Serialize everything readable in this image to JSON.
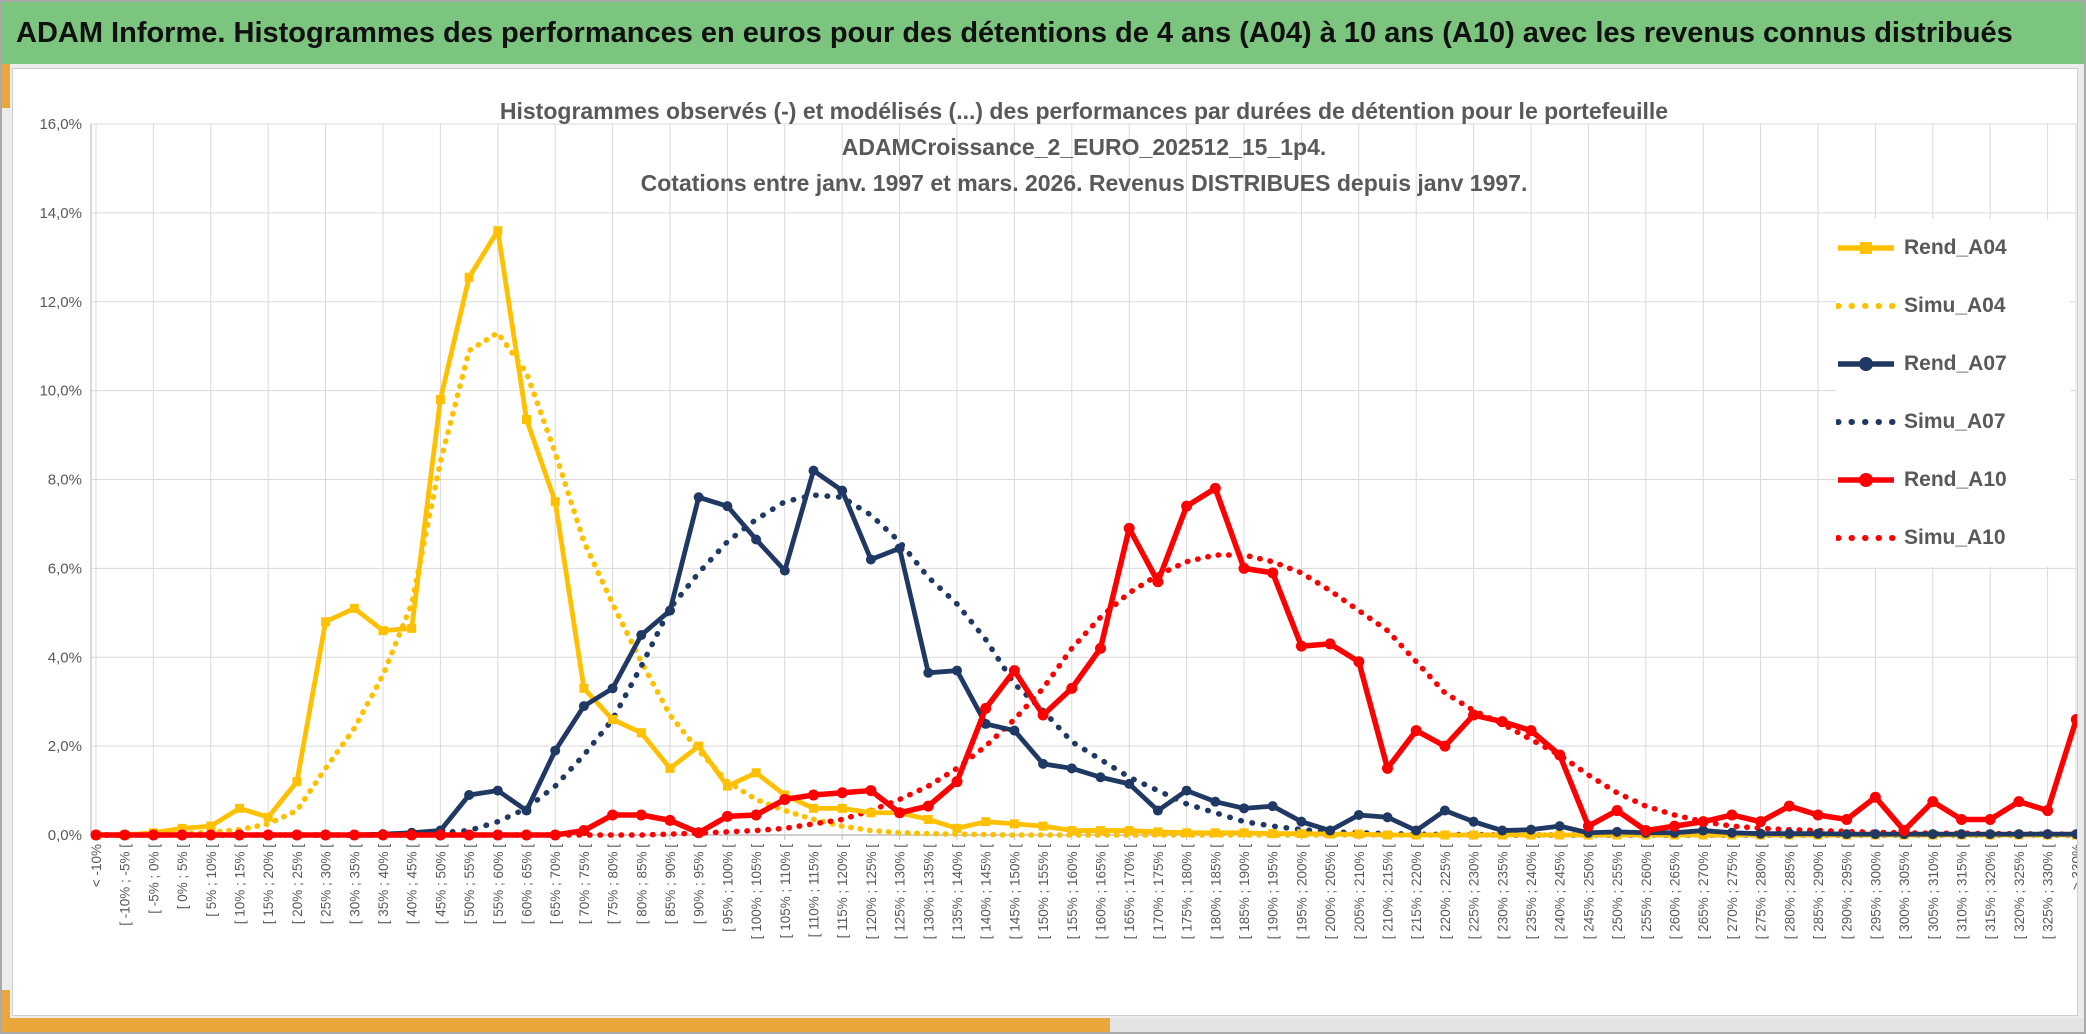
{
  "window": {
    "title": "ADAM Informe. Histogrammes des performances en euros pour des détentions de 4 ans (A04) à 10 ans (A10) avec les revenus connus distribués"
  },
  "colors": {
    "banner_green": "#7cc57e",
    "accent_gold_bar": "#e9a73b",
    "series_gold": "#FFC000",
    "series_navy": "#1F3864",
    "series_red": "#FF0000",
    "grid": "#D9D9D9",
    "axis": "#BFBFBF",
    "text_grey": "#595959"
  },
  "chart": {
    "title_lines": [
      "Histogrammes observés (-) et modélisés (...) des performances par durées de détention pour le portefeuille",
      "ADAMCroissance_2_EURO_202512_15_1p4.",
      "Cotations entre janv. 1997 et mars. 2026. Revenus DISTRIBUES depuis janv 1997."
    ],
    "y_tick_labels": [
      "16,0%",
      "14,0%",
      "12,0%",
      "10,0%",
      "8,0%",
      "6,0%",
      "4,0%",
      "2,0%",
      "0,0%"
    ]
  },
  "chart_data": {
    "type": "line",
    "title": "Histogrammes observés (-) et modélisés (...) des performances par durées de détention pour le portefeuille ADAMCroissance_2_EURO_202512_15_1p4. Cotations entre janv. 1997 et mars. 2026. Revenus DISTRIBUES depuis janv 1997.",
    "xlabel": "",
    "ylabel": "",
    "ylim": [
      0,
      16
    ],
    "y_step": 2,
    "y_tick_format": "percent-comma",
    "grid": true,
    "legend_position": "right-inside",
    "categories": [
      "< -10%",
      "[ -10% ; -5% [",
      "[ -5% ; 0% [",
      "[ 0% ; 5% [",
      "[ 5% ; 10% [",
      "[ 10% ; 15% [",
      "[ 15% ; 20% [",
      "[ 20% ; 25% [",
      "[ 25% ; 30% [",
      "[ 30% ; 35% [",
      "[ 35% ; 40% [",
      "[ 40% ; 45% [",
      "[ 45% ; 50% [",
      "[ 50% ; 55% [",
      "[ 55% ; 60% [",
      "[ 60% ; 65% [",
      "[ 65% ; 70% [",
      "[ 70% ; 75% [",
      "[ 75% ; 80% [",
      "[ 80% ; 85% [",
      "[ 85% ; 90% [",
      "[ 90% ; 95% [",
      "[ 95% ; 100% [",
      "[ 100% ; 105% [",
      "[ 105% ; 110% [",
      "[ 110% ; 115% [",
      "[ 115% ; 120% [",
      "[ 120% ; 125% [",
      "[ 125% ; 130% [",
      "[ 130% ; 135% [",
      "[ 135% ; 140% [",
      "[ 140% ; 145% [",
      "[ 145% ; 150% [",
      "[ 150% ; 155% [",
      "[ 155% ; 160% [",
      "[ 160% ; 165% [",
      "[ 165% ; 170% [",
      "[ 170% ; 175% [",
      "[ 175% ; 180% [",
      "[ 180% ; 185% [",
      "[ 185% ; 190% [",
      "[ 190% ; 195% [",
      "[ 195% ; 200% [",
      "[ 200% ; 205% [",
      "[ 205% ; 210% [",
      "[ 210% ; 215% [",
      "[ 215% ; 220% [",
      "[ 220% ; 225% [",
      "[ 225% ; 230% [",
      "[ 230% ; 235% [",
      "[ 235% ; 240% [",
      "[ 240% ; 245% [",
      "[ 245% ; 250% [",
      "[ 250% ; 255% [",
      "[ 255% ; 260% [",
      "[ 260% ; 265% [",
      "[ 265% ; 270% [",
      "[ 270% ; 275% [",
      "[ 275% ; 280% [",
      "[ 280% ; 285% [",
      "[ 285% ; 290% [",
      "[ 290% ; 295% [",
      "[ 295% ; 300% [",
      "[ 300% ; 305% [",
      "[ 305% ; 310% [",
      "[ 310% ; 315% [",
      "[ 315% ; 320% [",
      "[ 320% ; 325% [",
      "[ 325% ; 330% [",
      "> 330%"
    ],
    "series": [
      {
        "name": "Rend_A04",
        "color": "#FFC000",
        "style": "solid",
        "marker": "square",
        "values": [
          0,
          0,
          0.05,
          0.15,
          0.2,
          0.6,
          0.4,
          1.2,
          4.8,
          5.1,
          4.6,
          4.65,
          9.8,
          12.55,
          13.6,
          9.35,
          7.5,
          3.3,
          2.6,
          2.3,
          1.5,
          2.0,
          1.1,
          1.4,
          0.9,
          0.6,
          0.6,
          0.5,
          0.5,
          0.35,
          0.15,
          0.3,
          0.25,
          0.2,
          0.1,
          0.1,
          0.1,
          0.07,
          0.05,
          0.05,
          0.05,
          0.03,
          0.03,
          0.02,
          0.02,
          0,
          0,
          0,
          0,
          0,
          0,
          0,
          0,
          0,
          0,
          0,
          0,
          0,
          0,
          0,
          0,
          0,
          0,
          0,
          0,
          0,
          0,
          0,
          0,
          0
        ]
      },
      {
        "name": "Simu_A04",
        "color": "#FFC000",
        "style": "dotted",
        "marker": "none",
        "values": [
          0,
          0,
          0.01,
          0.03,
          0.06,
          0.12,
          0.25,
          0.55,
          1.5,
          2.4,
          3.6,
          5.2,
          8.4,
          10.9,
          11.3,
          10.4,
          8.6,
          6.6,
          5.2,
          3.9,
          2.7,
          1.9,
          1.2,
          0.8,
          0.55,
          0.35,
          0.2,
          0.1,
          0.05,
          0.03,
          0.02,
          0.01,
          0,
          0,
          0,
          0,
          0,
          0,
          0,
          0,
          0,
          0,
          0,
          0,
          0,
          0,
          0,
          0,
          0,
          0,
          0,
          0,
          0,
          0,
          0,
          0,
          0,
          0,
          0,
          0,
          0,
          0,
          0,
          0,
          0,
          0,
          0,
          0,
          0,
          0
        ]
      },
      {
        "name": "Rend_A07",
        "color": "#1F3864",
        "style": "solid",
        "marker": "circle",
        "values": [
          0,
          0,
          0,
          0,
          0,
          0,
          0,
          0,
          0,
          0,
          0.02,
          0.05,
          0.1,
          0.9,
          1.0,
          0.55,
          1.9,
          2.9,
          3.3,
          4.5,
          5.05,
          7.6,
          7.4,
          6.65,
          5.95,
          8.2,
          7.75,
          6.2,
          6.45,
          3.65,
          3.7,
          2.5,
          2.35,
          1.6,
          1.5,
          1.3,
          1.15,
          0.55,
          1.0,
          0.75,
          0.6,
          0.65,
          0.3,
          0.1,
          0.45,
          0.4,
          0.1,
          0.55,
          0.3,
          0.1,
          0.12,
          0.2,
          0.05,
          0.07,
          0.05,
          0.05,
          0.1,
          0.05,
          0.03,
          0.03,
          0.03,
          0.02,
          0.02,
          0.02,
          0.02,
          0.02,
          0.02,
          0.02,
          0.02,
          0.02
        ]
      },
      {
        "name": "Simu_A07",
        "color": "#1F3864",
        "style": "dotted",
        "marker": "none",
        "values": [
          0,
          0,
          0,
          0,
          0,
          0,
          0,
          0,
          0,
          0,
          0,
          0,
          0.05,
          0.1,
          0.3,
          0.6,
          1.1,
          1.8,
          2.6,
          3.8,
          5.1,
          5.9,
          6.6,
          7.1,
          7.5,
          7.65,
          7.6,
          7.2,
          6.6,
          5.8,
          5.2,
          4.4,
          3.4,
          2.8,
          2.1,
          1.7,
          1.3,
          1.0,
          0.7,
          0.5,
          0.3,
          0.2,
          0.12,
          0.07,
          0.05,
          0.03,
          0.02,
          0.01,
          0.01,
          0,
          0,
          0,
          0,
          0,
          0,
          0,
          0,
          0,
          0,
          0,
          0,
          0,
          0,
          0,
          0,
          0,
          0,
          0,
          0,
          0
        ]
      },
      {
        "name": "Rend_A10",
        "color": "#FF0000",
        "style": "solid",
        "marker": "circle",
        "values": [
          0,
          0,
          0,
          0,
          0,
          0,
          0,
          0,
          0,
          0,
          0,
          0,
          0,
          0,
          0,
          0,
          0,
          0.1,
          0.45,
          0.45,
          0.33,
          0.05,
          0.42,
          0.45,
          0.8,
          0.9,
          0.95,
          1.0,
          0.5,
          0.65,
          1.2,
          2.85,
          3.7,
          2.7,
          3.3,
          4.2,
          6.9,
          5.7,
          7.4,
          7.8,
          6.0,
          5.9,
          4.25,
          4.3,
          3.9,
          1.5,
          2.35,
          2.0,
          2.7,
          2.55,
          2.35,
          1.8,
          0.2,
          0.55,
          0.1,
          0.2,
          0.3,
          0.45,
          0.3,
          0.65,
          0.45,
          0.35,
          0.85,
          0.1,
          0.75,
          0.35,
          0.35,
          0.75,
          0.55,
          2.6
        ]
      },
      {
        "name": "Simu_A10",
        "color": "#FF0000",
        "style": "dotted",
        "marker": "none",
        "values": [
          0,
          0,
          0,
          0,
          0,
          0,
          0,
          0,
          0,
          0,
          0,
          0,
          0,
          0,
          0,
          0,
          0,
          0,
          0,
          0,
          0.02,
          0.04,
          0.07,
          0.1,
          0.15,
          0.25,
          0.35,
          0.55,
          0.8,
          1.1,
          1.5,
          2.0,
          2.6,
          3.3,
          4.2,
          4.9,
          5.45,
          5.85,
          6.15,
          6.3,
          6.3,
          6.15,
          5.9,
          5.5,
          5.05,
          4.6,
          3.9,
          3.2,
          2.8,
          2.5,
          2.15,
          1.8,
          1.35,
          0.95,
          0.65,
          0.45,
          0.3,
          0.2,
          0.15,
          0.12,
          0.1,
          0.08,
          0.06,
          0.05,
          0.04,
          0.04,
          0.03,
          0.03,
          0.02,
          0.02
        ]
      }
    ]
  }
}
